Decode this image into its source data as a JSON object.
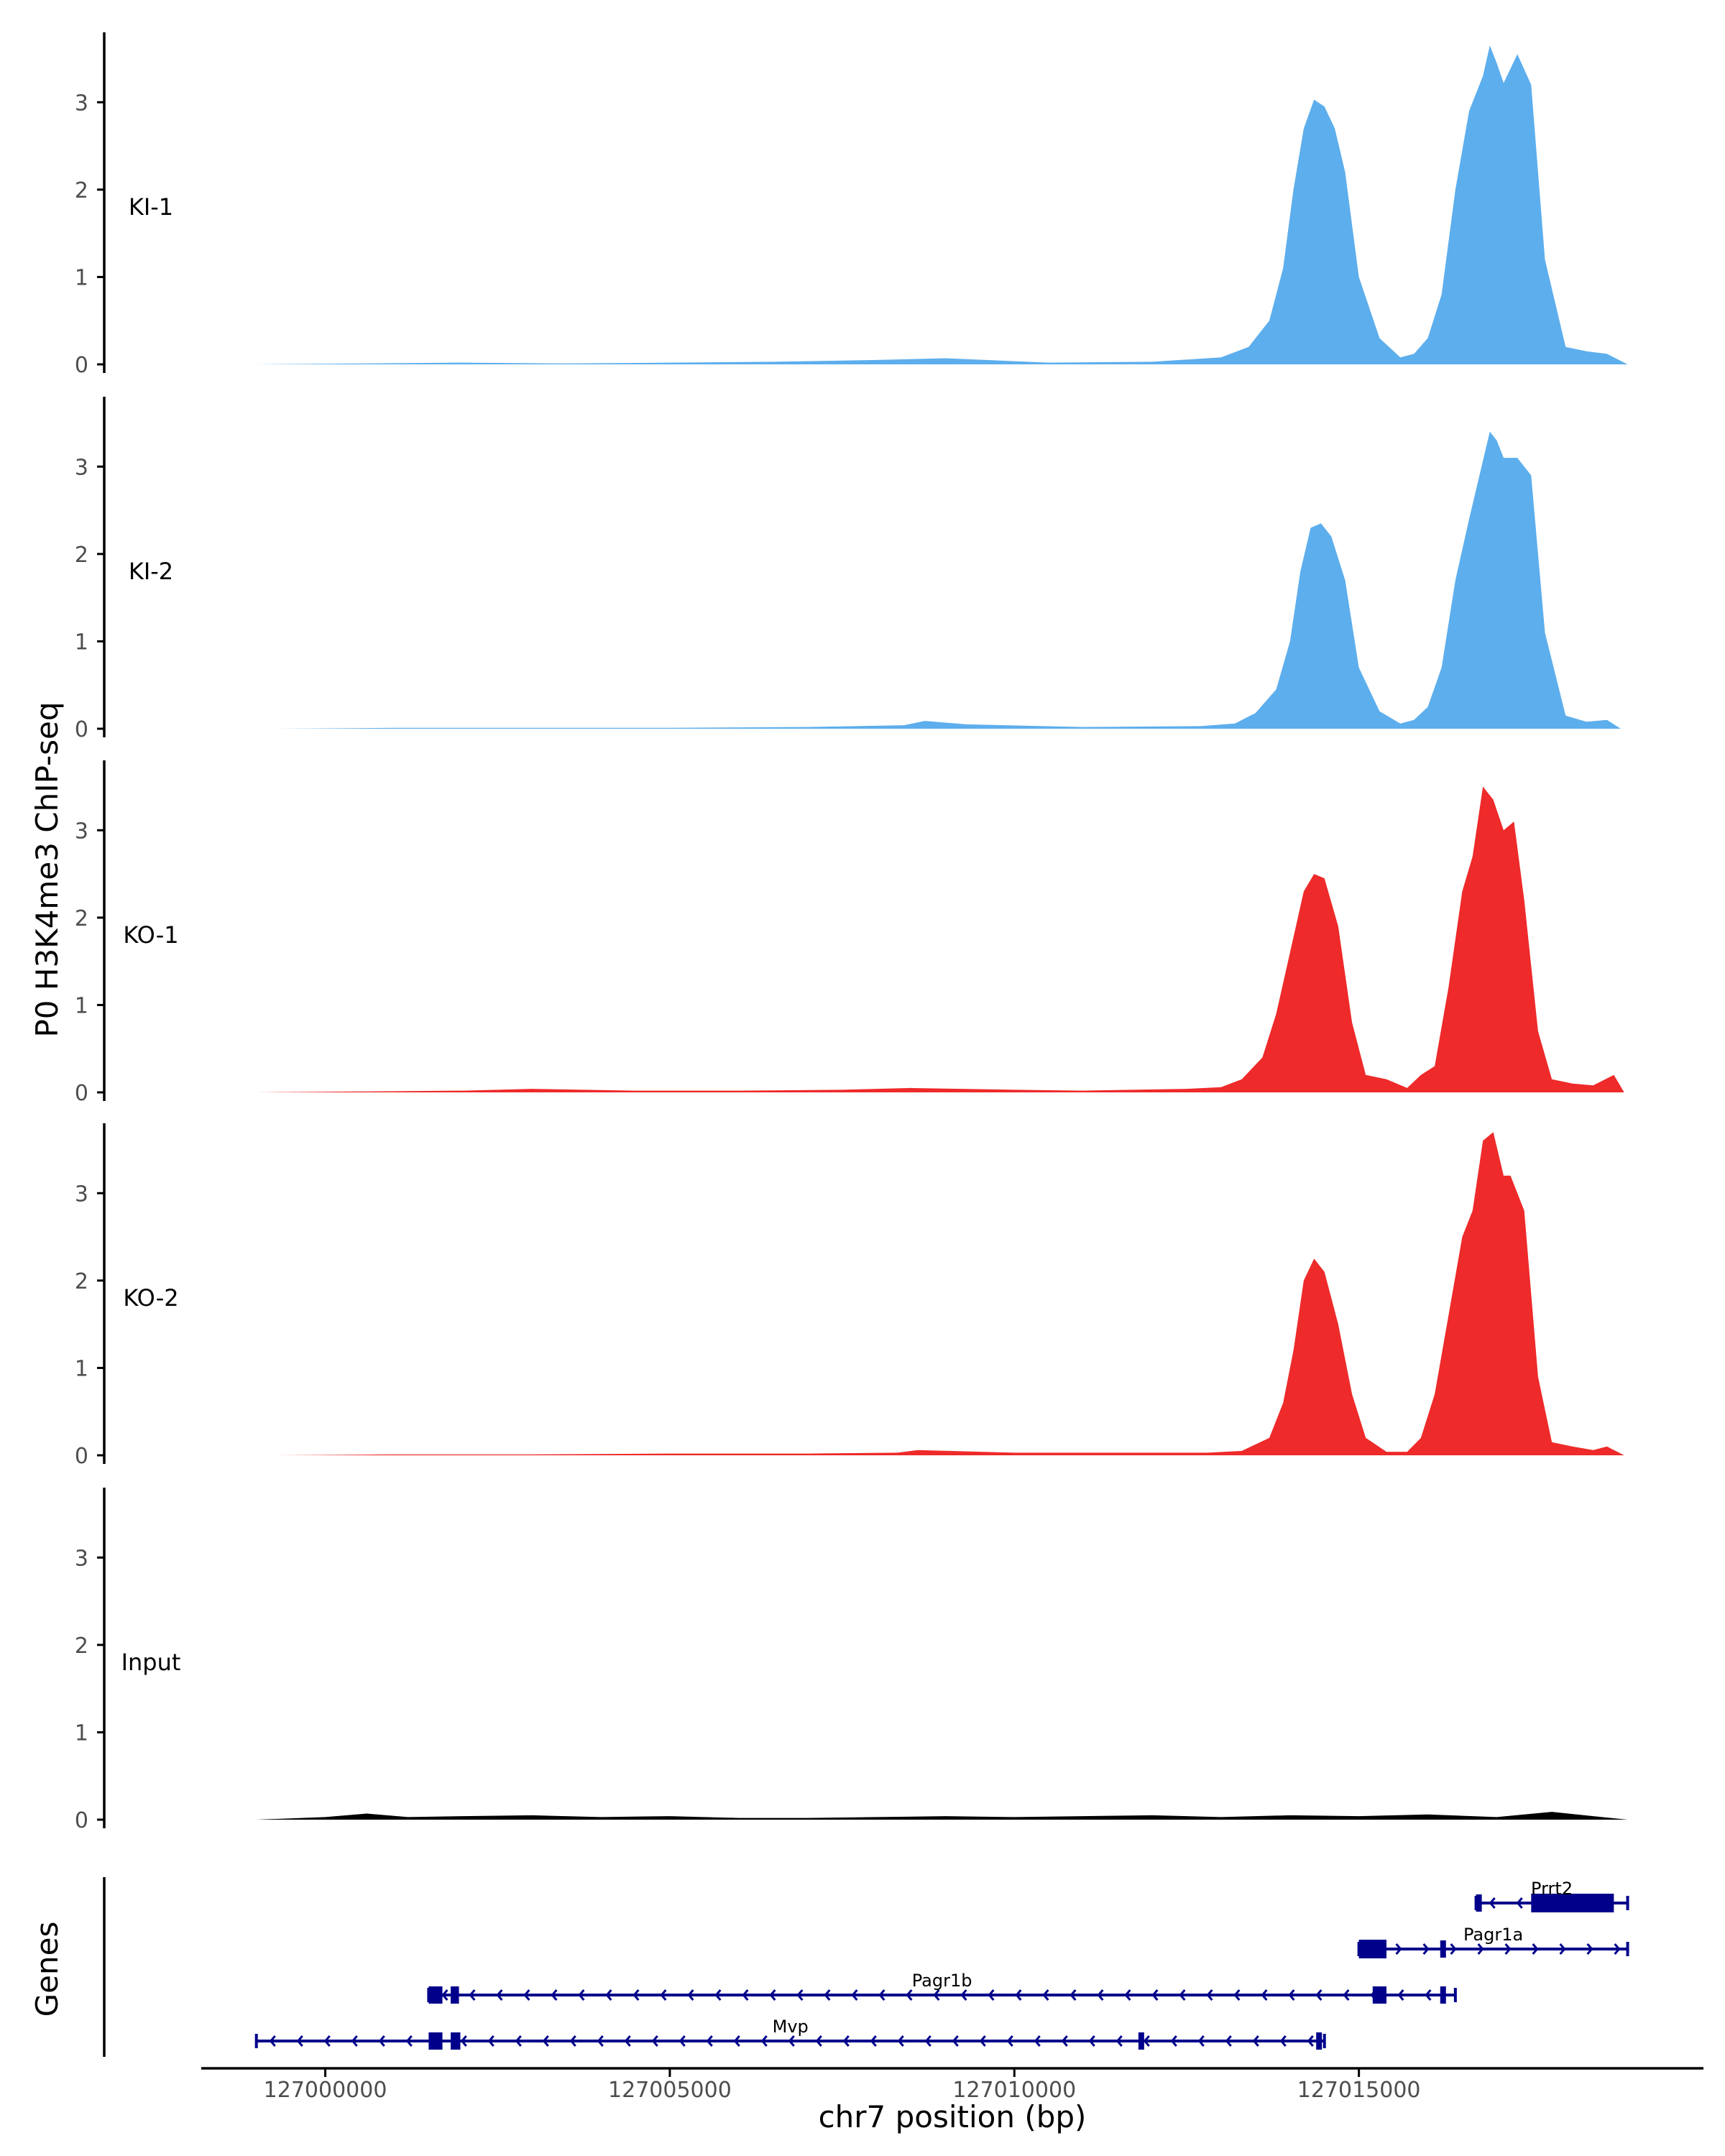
{
  "chart_data": {
    "type": "area",
    "ylabel": "P0 H3K4me3 ChIP-seq",
    "xlabel": "chr7 position (bp)",
    "genes_label": "Genes",
    "x_range": [
      126998200,
      127020000
    ],
    "ylim": [
      0,
      3.8
    ],
    "y_ticks": [
      0,
      1,
      2,
      3
    ],
    "x_ticks": [
      127000000,
      127005000,
      127010000,
      127015000
    ],
    "x_tick_labels": [
      "127000000",
      "127005000",
      "127010000",
      "127015000"
    ],
    "tracks": [
      {
        "name": "KI-1",
        "color": "#5daeed",
        "x": [
          126999000,
          127000500,
          127002000,
          127003500,
          127005000,
          127006500,
          127008000,
          127009000,
          127010500,
          127012000,
          127013000,
          127013400,
          127013700,
          127013900,
          127014050,
          127014200,
          127014350,
          127014500,
          127014650,
          127014800,
          127015000,
          127015300,
          127015600,
          127015800,
          127016000,
          127016200,
          127016400,
          127016600,
          127016700,
          127016800,
          127016900,
          127017000,
          127017100,
          127017300,
          127017500,
          127017700,
          127018000,
          127018300,
          127018600,
          127018900
        ],
        "values": [
          0,
          0.01,
          0.02,
          0.01,
          0.02,
          0.03,
          0.05,
          0.07,
          0.02,
          0.03,
          0.08,
          0.2,
          0.5,
          1.1,
          2.0,
          2.7,
          3.03,
          2.95,
          2.7,
          2.2,
          1.0,
          0.3,
          0.08,
          0.12,
          0.3,
          0.8,
          2.0,
          2.9,
          3.1,
          3.3,
          3.65,
          3.45,
          3.22,
          3.55,
          3.2,
          1.2,
          0.2,
          0.15,
          0.12,
          0.0
        ]
      },
      {
        "name": "KI-2",
        "color": "#5daeed",
        "x": [
          126999300,
          127001000,
          127003000,
          127005000,
          127007000,
          127008400,
          127008700,
          127009300,
          127011000,
          127012700,
          127013200,
          127013500,
          127013800,
          127014000,
          127014150,
          127014300,
          127014450,
          127014600,
          127014800,
          127015000,
          127015300,
          127015600,
          127015800,
          127016000,
          127016200,
          127016400,
          127016600,
          127016750,
          127016900,
          127017000,
          127017100,
          127017300,
          127017500,
          127017700,
          127018000,
          127018300,
          127018600,
          127018800
        ],
        "values": [
          0,
          0.01,
          0.01,
          0.01,
          0.02,
          0.04,
          0.09,
          0.05,
          0.02,
          0.03,
          0.06,
          0.18,
          0.45,
          1.0,
          1.8,
          2.3,
          2.35,
          2.2,
          1.7,
          0.7,
          0.2,
          0.06,
          0.1,
          0.25,
          0.7,
          1.7,
          2.4,
          2.9,
          3.4,
          3.3,
          3.1,
          3.1,
          2.9,
          1.1,
          0.15,
          0.08,
          0.1,
          0.0
        ]
      },
      {
        "name": "KO-1",
        "color": "#ee2a2a",
        "x": [
          126999000,
          127000500,
          127002000,
          127003000,
          127004500,
          127006000,
          127007500,
          127008500,
          127010000,
          127011000,
          127012500,
          127013000,
          127013300,
          127013600,
          127013800,
          127014000,
          127014200,
          127014350,
          127014500,
          127014700,
          127014900,
          127015100,
          127015400,
          127015700,
          127015900,
          127016100,
          127016300,
          127016500,
          127016650,
          127016800,
          127016950,
          127017100,
          127017250,
          127017400,
          127017600,
          127017800,
          127018100,
          127018400,
          127018700,
          127018850
        ],
        "values": [
          0,
          0.01,
          0.02,
          0.04,
          0.02,
          0.02,
          0.03,
          0.05,
          0.03,
          0.02,
          0.04,
          0.06,
          0.15,
          0.4,
          0.9,
          1.6,
          2.3,
          2.5,
          2.45,
          1.9,
          0.8,
          0.2,
          0.15,
          0.05,
          0.2,
          0.3,
          1.2,
          2.3,
          2.7,
          3.5,
          3.35,
          3.0,
          3.1,
          2.2,
          0.7,
          0.15,
          0.1,
          0.08,
          0.2,
          0.0
        ]
      },
      {
        "name": "KO-2",
        "color": "#ee2a2a",
        "x": [
          126999300,
          127001000,
          127003000,
          127005000,
          127007000,
          127008300,
          127008600,
          127010000,
          127011500,
          127012800,
          127013300,
          127013700,
          127013900,
          127014050,
          127014200,
          127014350,
          127014500,
          127014700,
          127014900,
          127015100,
          127015400,
          127015700,
          127015900,
          127016100,
          127016300,
          127016500,
          127016650,
          127016800,
          127016950,
          127017100,
          127017200,
          127017400,
          127017600,
          127017800,
          127018100,
          127018400,
          127018600,
          127018850
        ],
        "values": [
          0,
          0.01,
          0.01,
          0.02,
          0.02,
          0.03,
          0.06,
          0.03,
          0.03,
          0.03,
          0.05,
          0.2,
          0.6,
          1.2,
          2.0,
          2.25,
          2.1,
          1.5,
          0.7,
          0.2,
          0.04,
          0.04,
          0.2,
          0.7,
          1.6,
          2.5,
          2.8,
          3.6,
          3.7,
          3.2,
          3.2,
          2.8,
          0.9,
          0.15,
          0.1,
          0.06,
          0.1,
          0.0
        ]
      },
      {
        "name": "Input",
        "color": "#000000",
        "x": [
          126999000,
          127000000,
          127000600,
          127001200,
          127002000,
          127003000,
          127004000,
          127005000,
          127006000,
          127007000,
          127008000,
          127009000,
          127010000,
          127011000,
          127012000,
          127013000,
          127014000,
          127015000,
          127016000,
          127017000,
          127017800,
          127018400,
          127018900
        ],
        "values": [
          0,
          0.03,
          0.07,
          0.03,
          0.04,
          0.05,
          0.03,
          0.04,
          0.02,
          0.02,
          0.03,
          0.04,
          0.03,
          0.04,
          0.05,
          0.03,
          0.05,
          0.04,
          0.06,
          0.03,
          0.09,
          0.04,
          0.0
        ]
      }
    ],
    "genes": [
      {
        "name": "Prrt2",
        "start": 127016700,
        "end": 127018900,
        "strand": "-",
        "exons": [
          [
            127016700,
            127016760
          ],
          [
            127017500,
            127018700
          ]
        ]
      },
      {
        "name": "Pagr1a",
        "start": 127015000,
        "end": 127018900,
        "strand": "+",
        "exons": [
          [
            127015000,
            127015400
          ],
          [
            127016180,
            127016240
          ]
        ]
      },
      {
        "name": "Pagr1b",
        "start": 127001500,
        "end": 127016400,
        "strand": "-",
        "exons": [
          [
            127001500,
            127001700
          ],
          [
            127001820,
            127001940
          ],
          [
            127015200,
            127015400
          ],
          [
            127016180,
            127016240
          ]
        ]
      },
      {
        "name": "Mvp",
        "start": 126999000,
        "end": 127014500,
        "strand": "-",
        "exons": [
          [
            127001500,
            127001700
          ],
          [
            127001820,
            127001960
          ],
          [
            127011800,
            127011860
          ],
          [
            127014380,
            127014460
          ]
        ]
      }
    ]
  }
}
